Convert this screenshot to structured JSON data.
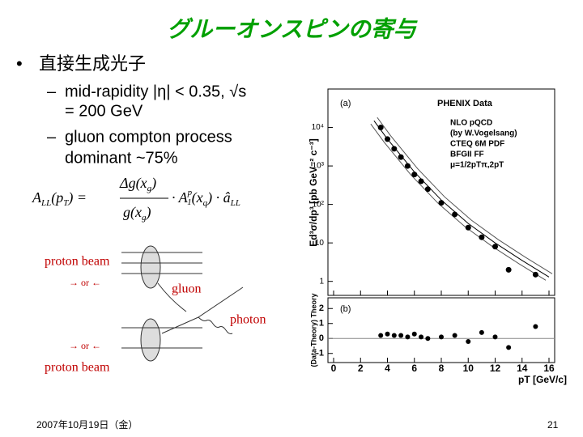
{
  "slide": {
    "title": "グルーオンスピンの寄与",
    "bullet": "直接生成光子",
    "sub_bullets": [
      "mid-rapidity |η| < 0.35, √s",
      "= 200 GeV",
      "gluon compton process",
      "dominant ~75%"
    ],
    "formula": {
      "lhs": "A",
      "lhs_sub": "LL",
      "lhs_arg": "(p",
      "lhs_arg_sub": "T",
      "lhs_arg_end": ") =",
      "num": "Δg(x",
      "num_sub": "g",
      "num_end": ")",
      "den": "g(x",
      "den_sub": "g",
      "den_end": ")",
      "mid": "· A",
      "mid_sup": "p",
      "mid_sub": "1",
      "mid_arg": "(x",
      "mid_arg_sub": "q",
      "mid_arg_end": ") · â",
      "end_sub": "LL"
    },
    "diagram": {
      "beam_top": "proton beam",
      "dir_top": "→ or ←",
      "gluon": "gluon",
      "photon": "photon",
      "dir_bottom": "→ or ←",
      "beam_bottom": "proton beam"
    },
    "footer": {
      "date": "2007年10月19日（金）",
      "page": "21"
    }
  },
  "figure": {
    "type": "scatter",
    "panel_a": "(a)",
    "panel_b": "(b)",
    "header": "PHENIX Data",
    "legend": [
      "NLO pQCD",
      "(by W.Vogelsang)",
      "CTEQ 6M PDF",
      "BFGII FF",
      "μ=1/2pTπ,2pT"
    ],
    "ylabel": "Ed³σ/dp³ [pb GeV⁻² c⁻³]",
    "ylabel_b": "(Data-Theory) Theory",
    "xlabel": "pT [GeV/c]",
    "x": [
      3.5,
      4,
      4.5,
      5,
      5.5,
      6,
      6.5,
      7,
      8,
      9,
      10,
      11,
      12,
      13,
      15
    ],
    "values": [
      10000,
      5000,
      2800,
      1700,
      1000,
      600,
      400,
      250,
      110,
      55,
      25,
      14,
      8,
      2,
      1.5
    ],
    "residuals": [
      0.2,
      0.3,
      0.2,
      0.2,
      0.1,
      0.3,
      0.1,
      0.0,
      0.1,
      0.2,
      -0.2,
      0.4,
      0.1,
      -0.6,
      0.8
    ],
    "theory_x": [
      3,
      4,
      6,
      8,
      10,
      12,
      14,
      16
    ],
    "theory": [
      15000,
      5000,
      700,
      130,
      32,
      10,
      3.5,
      1.3
    ],
    "log_y": true,
    "xlim": [
      0,
      16
    ],
    "ylim": [
      0.5,
      100000
    ],
    "ylim_b": [
      -1.5,
      2.5
    ],
    "xticks": [
      0,
      2,
      4,
      6,
      8,
      10,
      12,
      14,
      16
    ],
    "yticks": [
      1,
      10,
      {
        "value": 100,
        "label": "10²"
      },
      {
        "value": 1000,
        "label": "10³"
      },
      {
        "value": 10000,
        "label": "10⁴"
      }
    ],
    "yticks_b": [
      -1,
      0,
      1,
      2
    ]
  }
}
